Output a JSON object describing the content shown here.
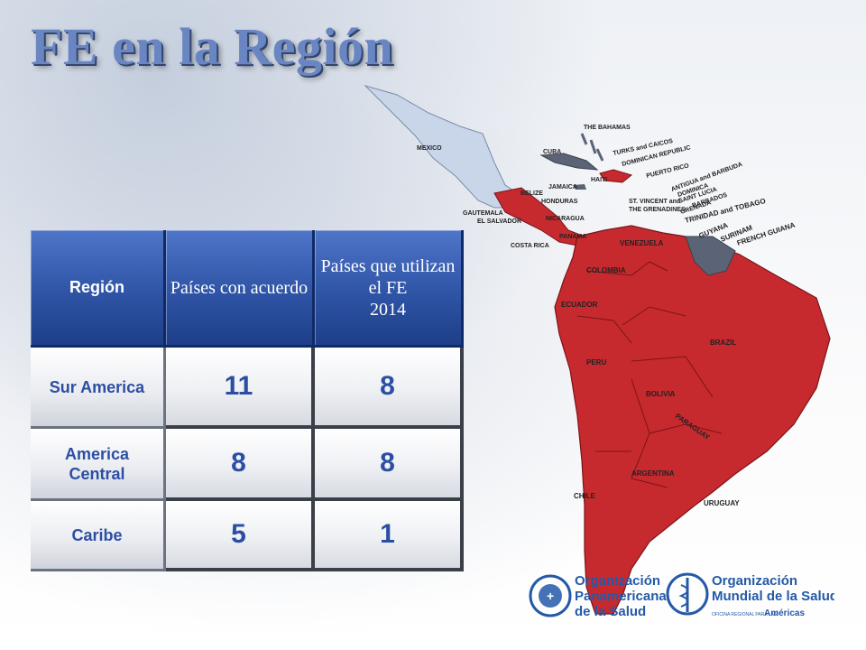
{
  "slide": {
    "title": "FE en la Región"
  },
  "table": {
    "headers": [
      "Región",
      "Países con acuerdo",
      "Países que utilizan el FE\n2014"
    ],
    "header_line1": [
      "Región",
      "Países con acuerdo",
      "Países que utilizan el FE"
    ],
    "header_year": "2014",
    "rows": [
      {
        "region": "Sur America",
        "acuerdo": "11",
        "utilizan": "8"
      },
      {
        "region": "America Central",
        "acuerdo": "8",
        "utilizan": "8"
      },
      {
        "region": "Caribe",
        "acuerdo": "5",
        "utilizan": "1"
      }
    ]
  },
  "map": {
    "labels": {
      "mexico": "MEXICO",
      "bahamas": "THE BAHAMAS",
      "cuba": "CUBA",
      "turks": "TURKS and CAICOS",
      "dominican": "DOMINICAN REPUBLIC",
      "puerto_rico": "PUERTO RICO",
      "haiti": "HAITI",
      "antigua": "ANTIGUA and BARBUDA",
      "jamaica": "JAMAICA",
      "dominica": "DOMINICA",
      "saint_lucia": "SAINT LUCIA",
      "barbados": "BARBADOS",
      "belize": "BELIZE",
      "honduras": "HONDURAS",
      "st_vincent": "ST. VINCENT and",
      "grenadines": "THE GRENADINES",
      "grenada": "GRENADA",
      "guatemala": "GAUTEMALA",
      "el_salvador": "EL SALVADOR",
      "nicaragua": "NICARAGUA",
      "trinidad": "TRINIDAD and TOBAGO",
      "guyana": "GUYANA",
      "surinam": "SURINAM",
      "french_guiana": "FRENCH GUIANA",
      "costa_rica": "COSTA RICA",
      "panama": "PANAMA",
      "venezuela": "VENEZUELA",
      "colombia": "COLOMBIA",
      "ecuador": "ECUADOR",
      "brazil": "BRAZIL",
      "peru": "PERU",
      "bolivia": "BOLIVIA",
      "paraguay": "PARAGUAY",
      "argentina": "ARGENTINA",
      "chile": "CHILE",
      "uruguay": "URUGUAY"
    }
  },
  "logos": {
    "paho": [
      "Organización",
      "Panamericana",
      "de la Salud"
    ],
    "who": [
      "Organización",
      "Mundial de la Salud"
    ],
    "who_sub": "OFICINA REGIONAL PARA LAS",
    "who_sub2": "Américas"
  },
  "colors": {
    "participating": "#c62a2f",
    "non_participating_light": "#c9d6ea",
    "non_participating_dark": "#5b6477",
    "header_blue": "#2f54a6",
    "number_blue": "#2b4ea3"
  }
}
